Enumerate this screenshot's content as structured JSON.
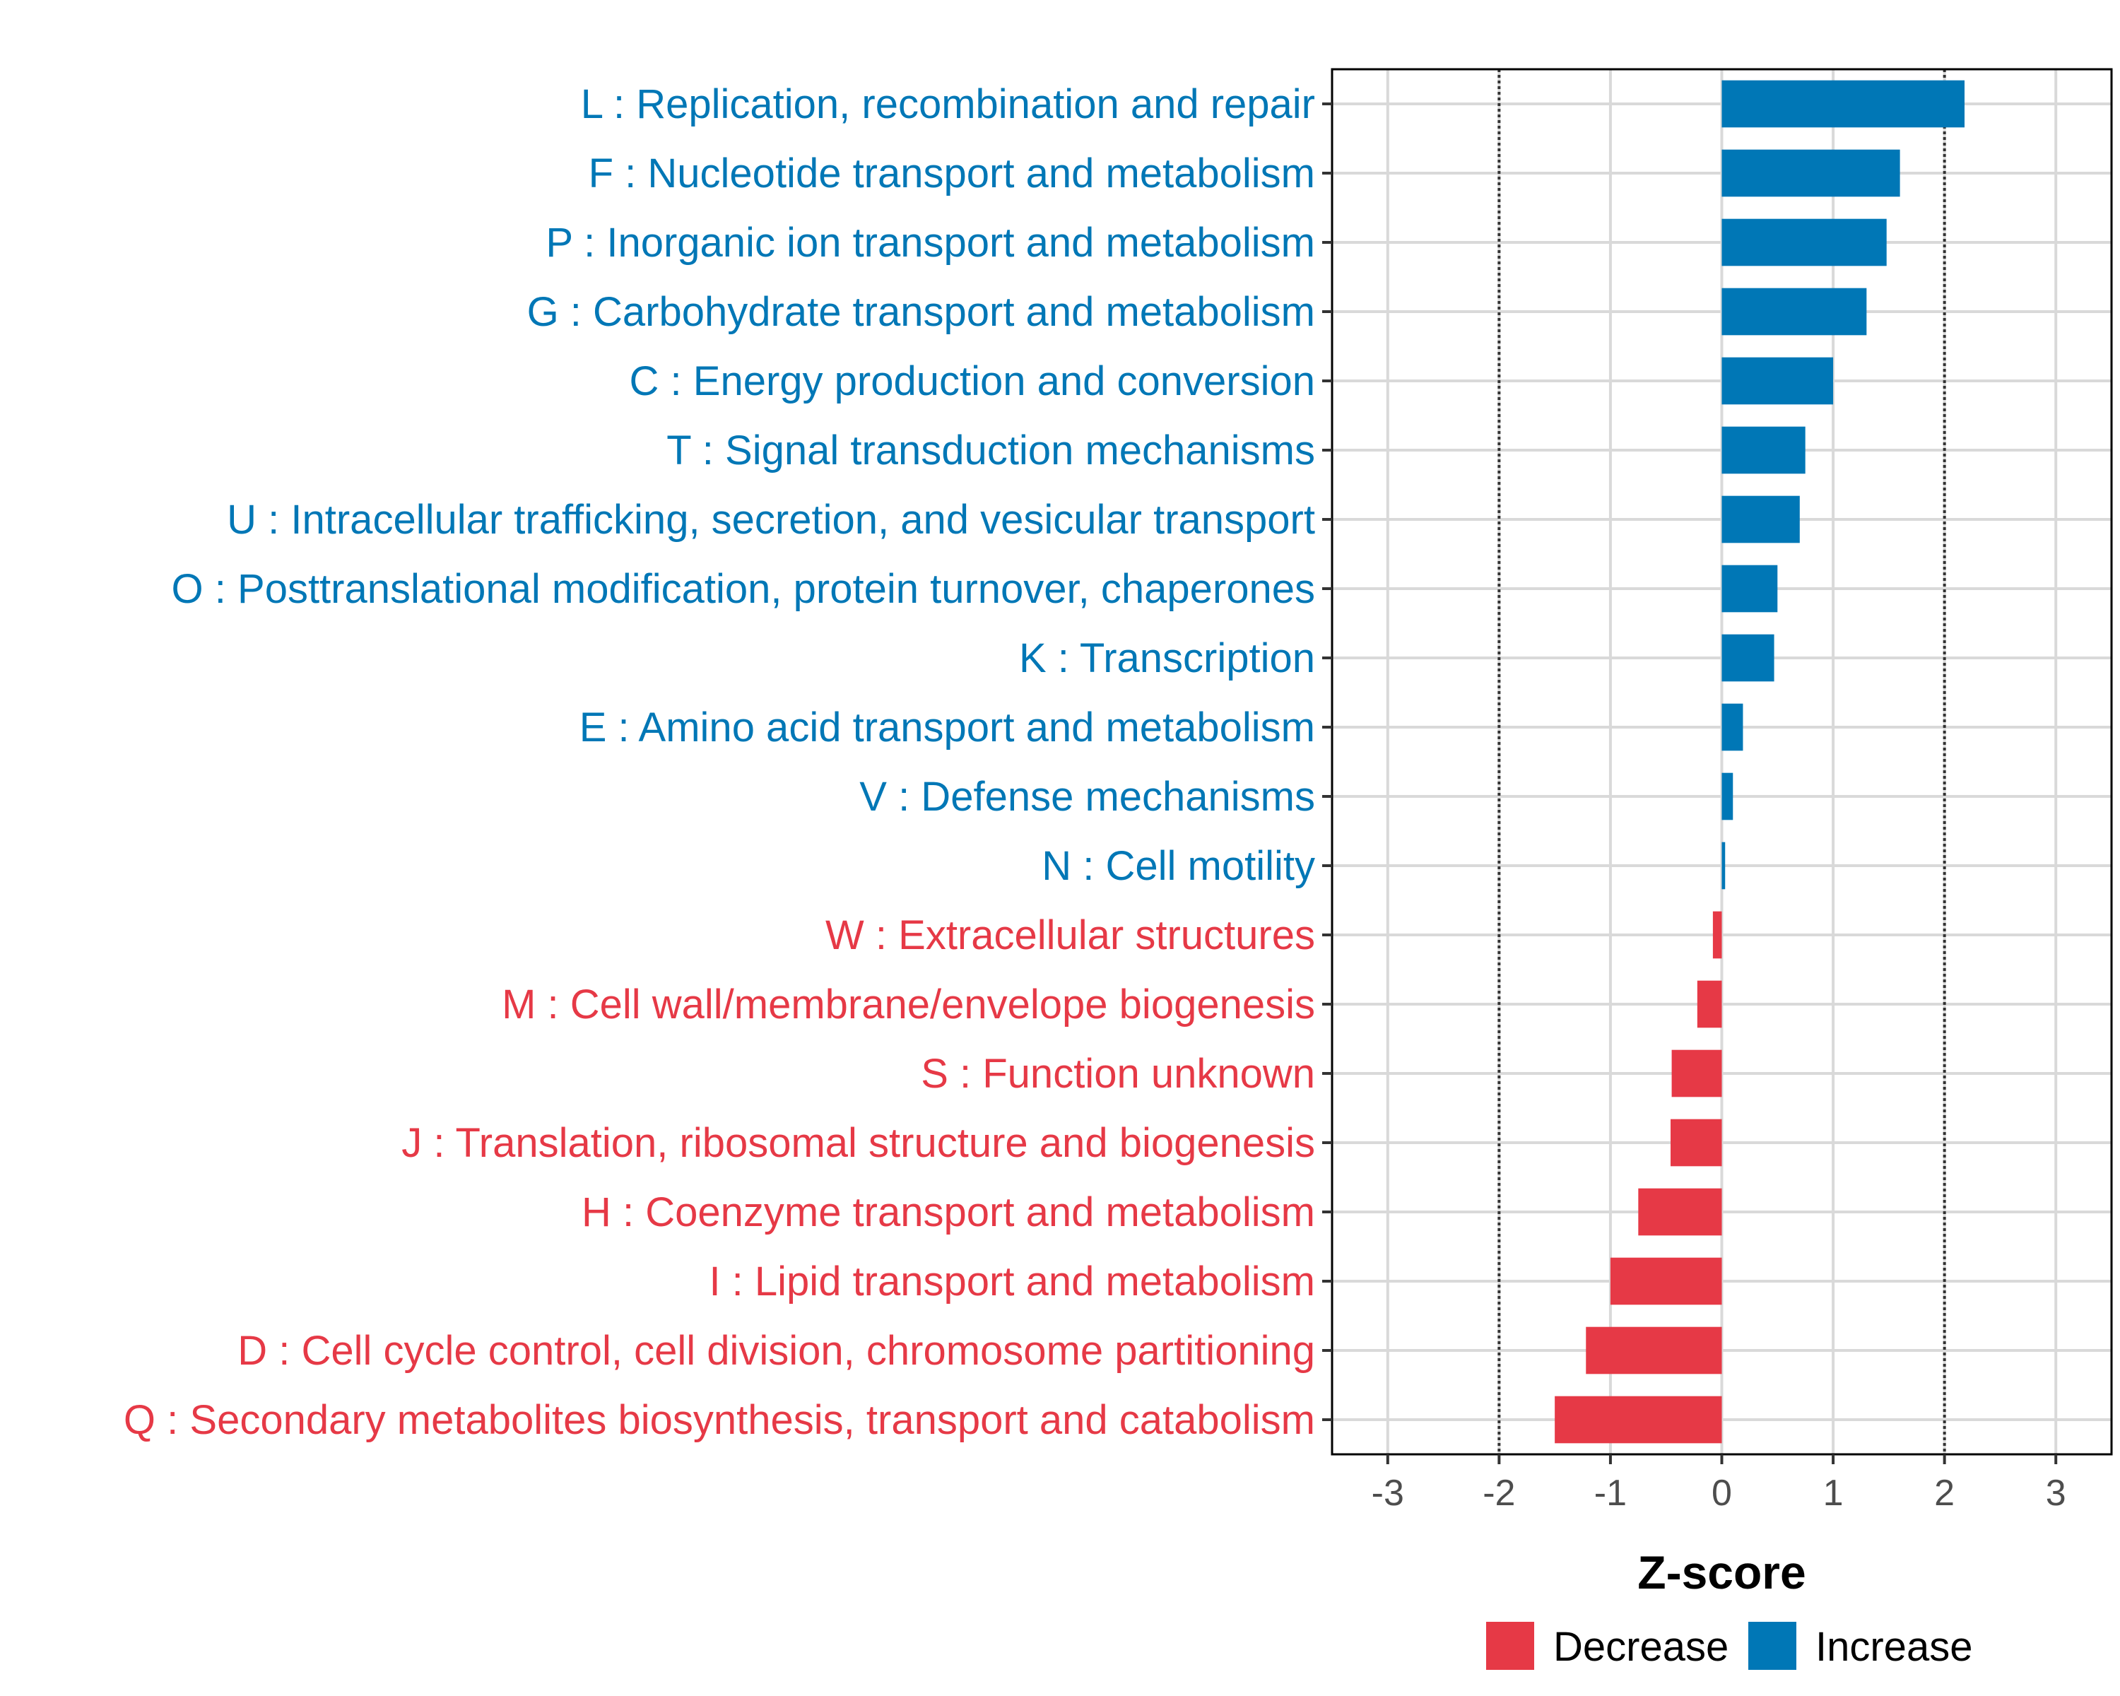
{
  "chart_data": {
    "type": "bar",
    "orientation": "horizontal",
    "xlabel": "Z-score",
    "xlim": [
      -3.5,
      3.5
    ],
    "xticks": [
      -3,
      -2,
      -1,
      0,
      1,
      2,
      3
    ],
    "reference_lines": [
      -2,
      2
    ],
    "grid": true,
    "legend_position": "bottom",
    "colors": {
      "Decrease": "#E63946",
      "Increase": "#0077B6"
    },
    "legend": [
      {
        "name": "Decrease",
        "color": "#E63946"
      },
      {
        "name": "Increase",
        "color": "#0077B6"
      }
    ],
    "categories": [
      "L : Replication, recombination and repair",
      "F : Nucleotide transport and metabolism",
      "P : Inorganic ion transport and metabolism",
      "G : Carbohydrate transport and metabolism",
      "C : Energy production and conversion",
      "T : Signal transduction mechanisms",
      "U : Intracellular trafficking, secretion, and vesicular transport",
      "O : Posttranslational modification, protein turnover, chaperones",
      "K : Transcription",
      "E : Amino acid transport and metabolism",
      "V : Defense mechanisms",
      "N : Cell motility",
      "W : Extracellular structures",
      "M : Cell wall/membrane/envelope biogenesis",
      "S : Function unknown",
      "J : Translation, ribosomal structure and biogenesis",
      "H : Coenzyme transport and metabolism",
      "I : Lipid transport and metabolism",
      "D : Cell cycle control, cell division, chromosome partitioning",
      "Q : Secondary metabolites biosynthesis, transport and catabolism"
    ],
    "values": [
      2.18,
      1.6,
      1.48,
      1.3,
      1.0,
      0.75,
      0.7,
      0.5,
      0.47,
      0.19,
      0.1,
      0.03,
      -0.08,
      -0.22,
      -0.45,
      -0.46,
      -0.75,
      -1.0,
      -1.22,
      -1.5
    ],
    "groups": [
      "Increase",
      "Increase",
      "Increase",
      "Increase",
      "Increase",
      "Increase",
      "Increase",
      "Increase",
      "Increase",
      "Increase",
      "Increase",
      "Increase",
      "Decrease",
      "Decrease",
      "Decrease",
      "Decrease",
      "Decrease",
      "Decrease",
      "Decrease",
      "Decrease"
    ]
  }
}
